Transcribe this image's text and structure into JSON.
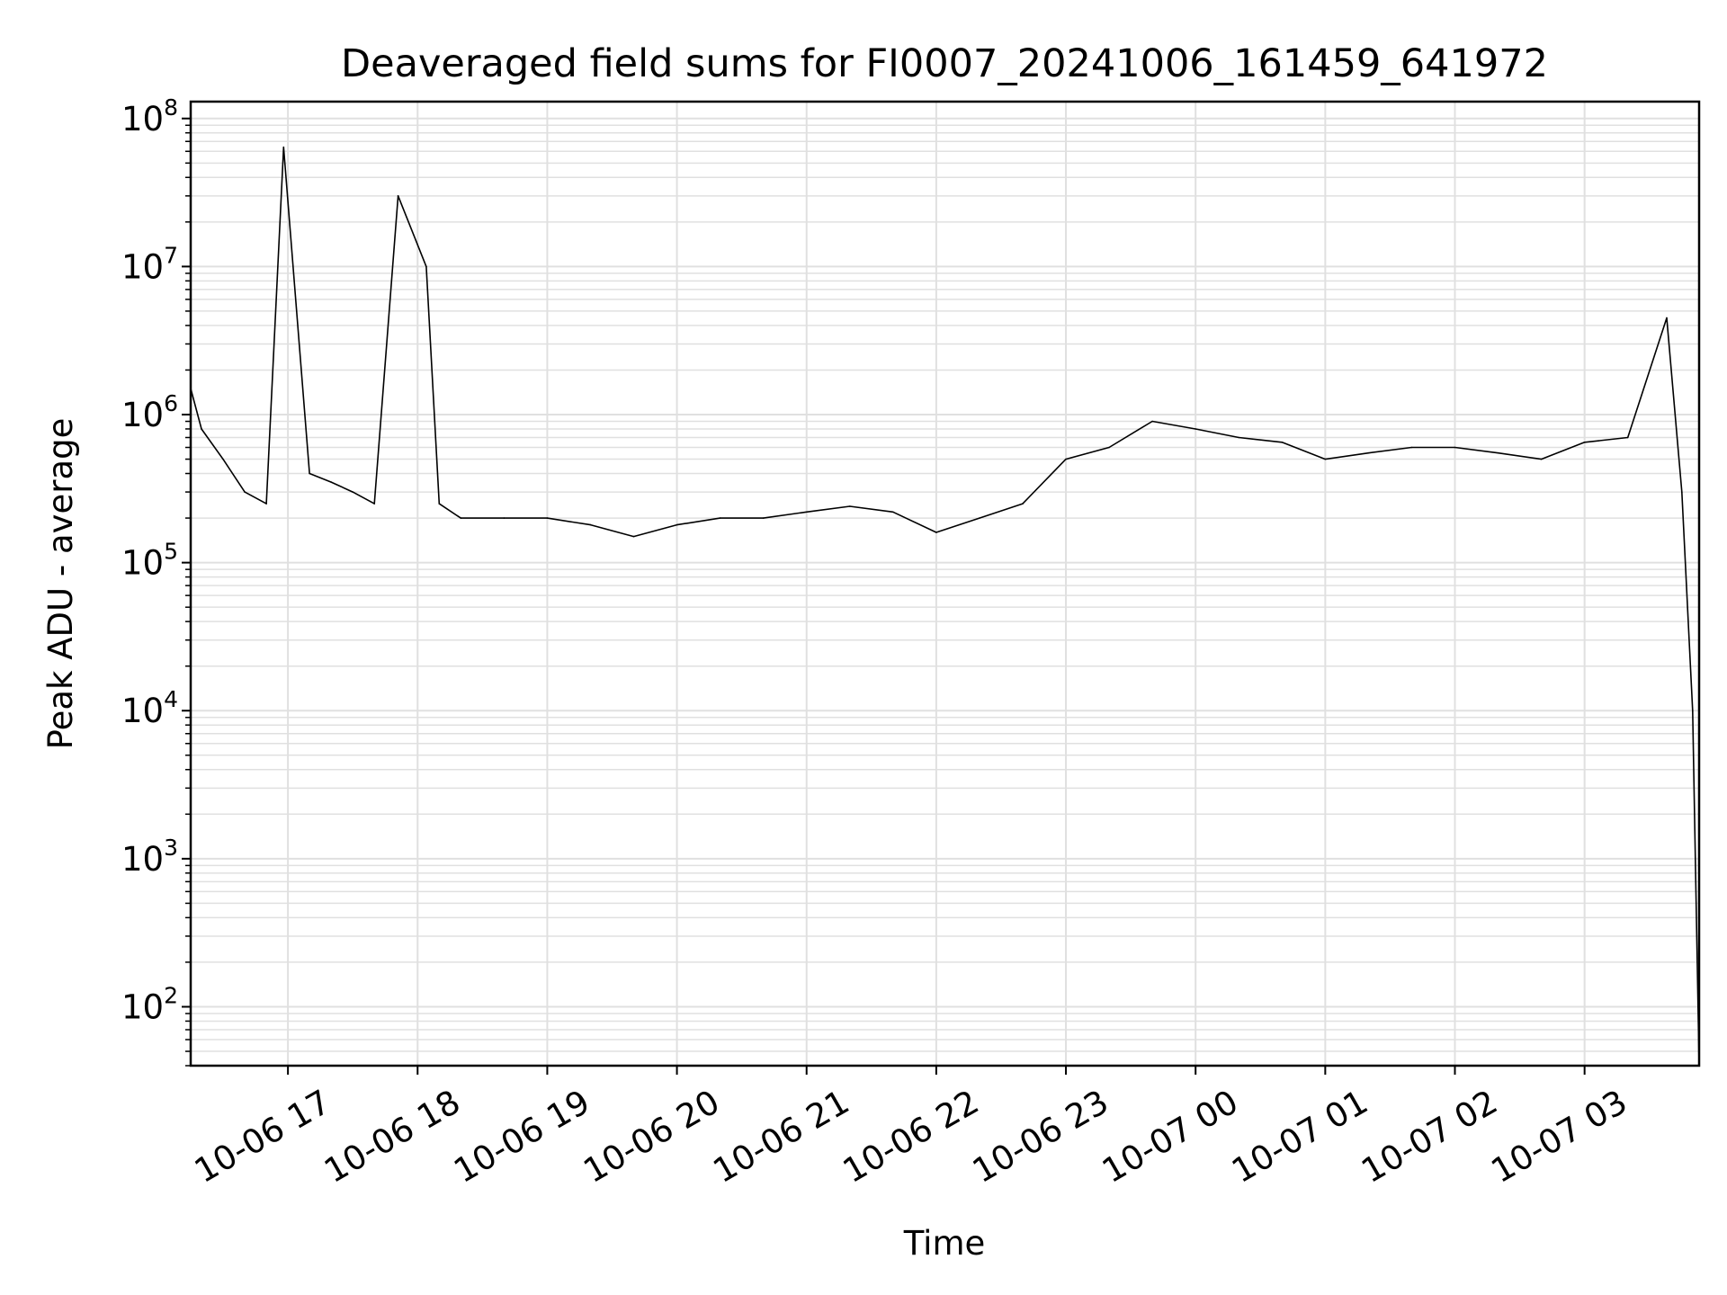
{
  "chart_data": {
    "type": "line",
    "title": "Deaveraged field sums for FI0007_20241006_161459_641972",
    "xlabel": "Time",
    "ylabel": "Peak ADU - average",
    "yscale": "log",
    "ylim": [
      40,
      130000000
    ],
    "xlim": [
      "2024-10-06 16:15",
      "2024-10-07 03:53"
    ],
    "grid": true,
    "line_color": "#000000",
    "grid_color": "#e0e0e0",
    "x_ticks": [
      {
        "value": "2024-10-06 17:00",
        "label": "10-06 17"
      },
      {
        "value": "2024-10-06 18:00",
        "label": "10-06 18"
      },
      {
        "value": "2024-10-06 19:00",
        "label": "10-06 19"
      },
      {
        "value": "2024-10-06 20:00",
        "label": "10-06 20"
      },
      {
        "value": "2024-10-06 21:00",
        "label": "10-06 21"
      },
      {
        "value": "2024-10-06 22:00",
        "label": "10-06 22"
      },
      {
        "value": "2024-10-06 23:00",
        "label": "10-06 23"
      },
      {
        "value": "2024-10-07 00:00",
        "label": "10-07 00"
      },
      {
        "value": "2024-10-07 01:00",
        "label": "10-07 01"
      },
      {
        "value": "2024-10-07 02:00",
        "label": "10-07 02"
      },
      {
        "value": "2024-10-07 03:00",
        "label": "10-07 03"
      }
    ],
    "y_ticks": [
      {
        "value": 100,
        "base": "10",
        "exp": "2"
      },
      {
        "value": 1000,
        "base": "10",
        "exp": "3"
      },
      {
        "value": 10000,
        "base": "10",
        "exp": "4"
      },
      {
        "value": 100000,
        "base": "10",
        "exp": "5"
      },
      {
        "value": 1000000,
        "base": "10",
        "exp": "6"
      },
      {
        "value": 10000000,
        "base": "10",
        "exp": "7"
      },
      {
        "value": 100000000,
        "base": "10",
        "exp": "8"
      }
    ],
    "series": [
      {
        "x": [
          "2024-10-06 16:15",
          "2024-10-06 16:20",
          "2024-10-06 16:30",
          "2024-10-06 16:40",
          "2024-10-06 16:50",
          "2024-10-06 16:58",
          "2024-10-06 17:10",
          "2024-10-06 17:20",
          "2024-10-06 17:30",
          "2024-10-06 17:40",
          "2024-10-06 17:51",
          "2024-10-06 18:04",
          "2024-10-06 18:10",
          "2024-10-06 18:20",
          "2024-10-06 18:40",
          "2024-10-06 19:00",
          "2024-10-06 19:20",
          "2024-10-06 19:40",
          "2024-10-06 20:00",
          "2024-10-06 20:20",
          "2024-10-06 20:40",
          "2024-10-06 21:00",
          "2024-10-06 21:20",
          "2024-10-06 21:40",
          "2024-10-06 22:00",
          "2024-10-06 22:20",
          "2024-10-06 22:40",
          "2024-10-06 23:00",
          "2024-10-06 23:20",
          "2024-10-06 23:40",
          "2024-10-07 00:00",
          "2024-10-07 00:20",
          "2024-10-07 00:40",
          "2024-10-07 01:00",
          "2024-10-07 01:20",
          "2024-10-07 01:40",
          "2024-10-07 02:00",
          "2024-10-07 02:20",
          "2024-10-07 02:40",
          "2024-10-07 03:00",
          "2024-10-07 03:20",
          "2024-10-07 03:38",
          "2024-10-07 03:45",
          "2024-10-07 03:50",
          "2024-10-07 03:53"
        ],
        "y": [
          1500000,
          800000,
          500000,
          300000,
          250000,
          64000000,
          400000,
          350000,
          300000,
          250000,
          30000000,
          10000000,
          250000,
          200000,
          200000,
          200000,
          180000,
          150000,
          180000,
          200000,
          200000,
          220000,
          240000,
          220000,
          160000,
          200000,
          250000,
          500000,
          600000,
          900000,
          800000,
          700000,
          650000,
          500000,
          550000,
          600000,
          600000,
          550000,
          500000,
          650000,
          700000,
          4500000,
          300000,
          10000,
          40
        ]
      }
    ]
  }
}
